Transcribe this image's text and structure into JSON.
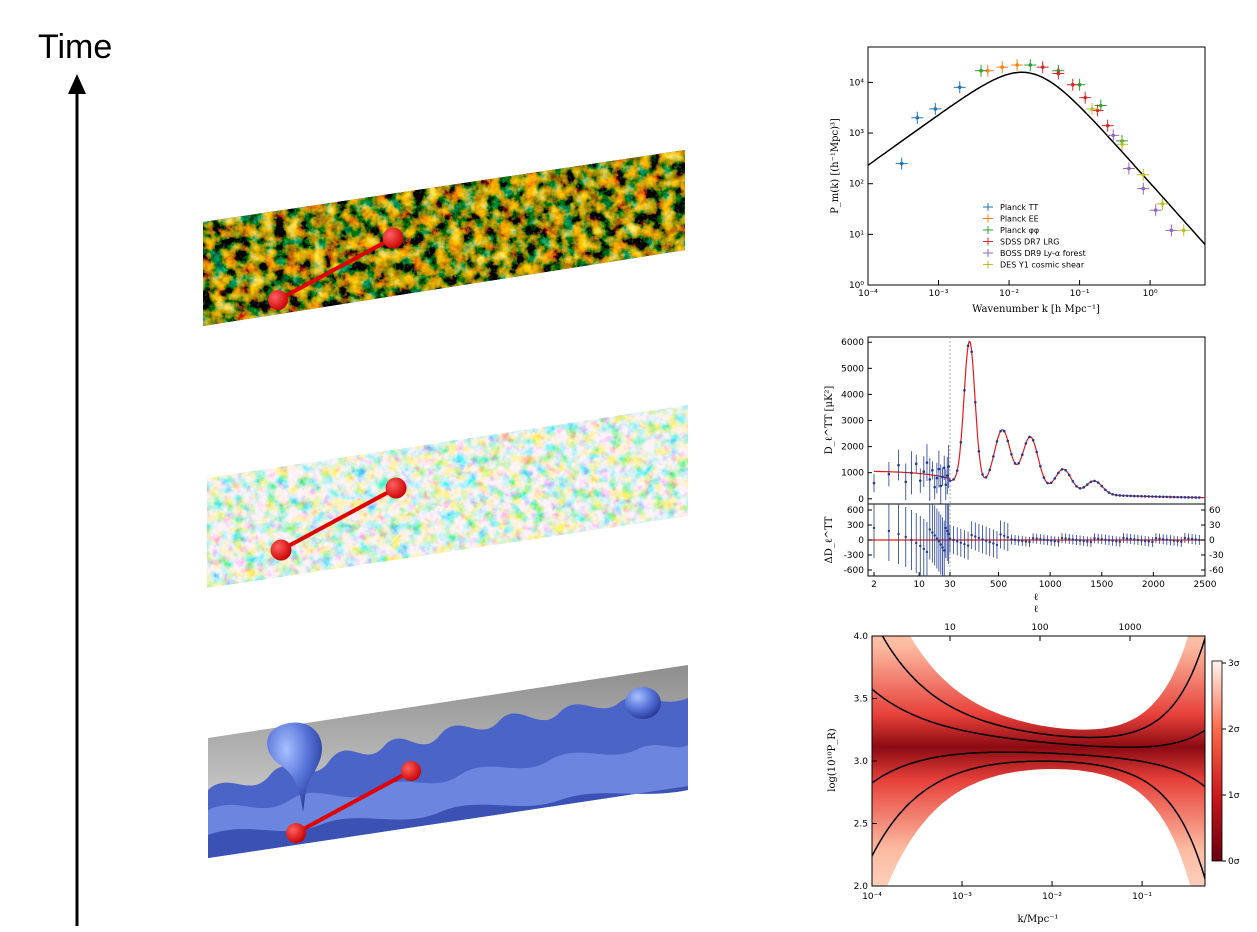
{
  "time_axis": {
    "label": "Time"
  },
  "panels": [
    {
      "name": "late-time large-scale structure slab"
    },
    {
      "name": "cmb temperature map slab"
    },
    {
      "name": "inflation field bubbles slab"
    }
  ],
  "chart_data": [
    {
      "type": "scatter",
      "xlabel": "Wavenumber k [h Mpc⁻¹]",
      "ylabel": "P_m(k) [(h⁻¹Mpc)³]",
      "x_scale": "log",
      "y_scale": "log",
      "xlim": [
        0.0001,
        6
      ],
      "ylim": [
        1,
        50000
      ],
      "x_ticks": [
        "10⁻⁴",
        "10⁻³",
        "10⁻²",
        "10⁻¹",
        "10⁰"
      ],
      "y_ticks": [
        "10⁰",
        "10¹",
        "10²",
        "10³",
        "10⁴"
      ],
      "legend_position": "lower-center",
      "series": [
        {
          "name": "Planck TT",
          "color": "#1f77b4",
          "x": [
            0.0003,
            0.0005,
            0.0009,
            0.002
          ],
          "y": [
            250,
            2000,
            3000,
            8000
          ]
        },
        {
          "name": "Planck EE",
          "color": "#ff7f0e",
          "x": [
            0.005,
            0.008,
            0.013
          ],
          "y": [
            17000,
            20000,
            22000
          ]
        },
        {
          "name": "Planck φφ",
          "color": "#2ca02c",
          "x": [
            0.004,
            0.02,
            0.05,
            0.1,
            0.2,
            0.4
          ],
          "y": [
            17000,
            22000,
            17000,
            9000,
            3500,
            700
          ]
        },
        {
          "name": "SDSS DR7 LRG",
          "color": "#d62728",
          "x": [
            0.03,
            0.05,
            0.08,
            0.12,
            0.18,
            0.25
          ],
          "y": [
            20000,
            15000,
            9000,
            5000,
            2800,
            1400
          ]
        },
        {
          "name": "BOSS DR9 Ly-α forest",
          "color": "#9467bd",
          "x": [
            0.3,
            0.5,
            0.8,
            1.2,
            2.0
          ],
          "y": [
            900,
            200,
            80,
            30,
            12
          ]
        },
        {
          "name": "DES Y1 cosmic shear",
          "color": "#bcbd22",
          "x": [
            0.15,
            0.4,
            0.8,
            1.5,
            3.0
          ],
          "y": [
            3000,
            600,
            150,
            40,
            12
          ]
        }
      ],
      "curve": {
        "color": "#000000"
      }
    },
    {
      "type": "scatter",
      "xlabel": "ℓ",
      "ylabel": "D_ℓ^TT [μK²]",
      "x_ticks": [
        "2",
        "10",
        "30",
        "500",
        "1000",
        "1500",
        "2000",
        "2500"
      ],
      "y_ticks": [
        "0",
        "1000",
        "2000",
        "3000",
        "4000",
        "5000",
        "6000"
      ],
      "ylim": [
        -200,
        6200
      ],
      "peaks": [
        {
          "l": 220,
          "D": 5750
        },
        {
          "l": 540,
          "D": 2550
        },
        {
          "l": 810,
          "D": 2550
        },
        {
          "l": 1130,
          "D": 1250
        },
        {
          "l": 1430,
          "D": 800
        }
      ],
      "residual": {
        "ylabel": "ΔD_ℓ^TT",
        "left_ticks": [
          "600",
          "300",
          "0",
          "-300",
          "-600"
        ],
        "right_ticks": [
          "60",
          "30",
          "0",
          "-30",
          "-60"
        ]
      },
      "model_color": "#e41a1c",
      "data_color": "#1f3a93"
    },
    {
      "type": "area",
      "xlabel": "k/Mpc⁻¹",
      "ylabel": "log(10¹⁰P_R)",
      "x_scale": "log",
      "xlim": [
        0.0001,
        0.5
      ],
      "ylim": [
        2.0,
        4.0
      ],
      "x_ticks": [
        "10⁻⁴",
        "10⁻³",
        "10⁻²",
        "10⁻¹"
      ],
      "y_ticks": [
        "2.0",
        "2.5",
        "3.0",
        "3.5",
        "4.0"
      ],
      "top_ticks": [
        "10",
        "100",
        "1000"
      ],
      "colorbar_ticks": [
        "0σ",
        "1σ",
        "2σ",
        "3σ"
      ],
      "center_value": 3.1
    }
  ]
}
